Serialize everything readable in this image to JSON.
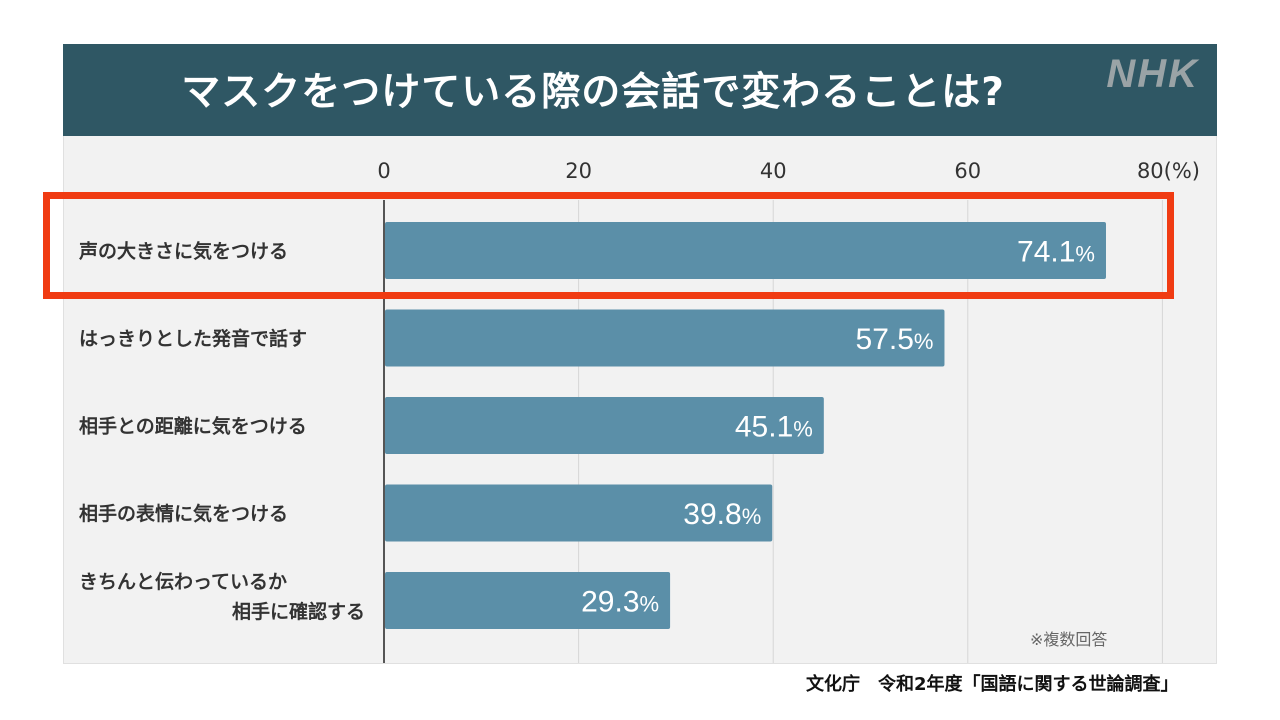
{
  "header": {
    "title": "マスクをつけている際の会話で変わることは?",
    "logo": "NHK"
  },
  "chart_data": {
    "type": "bar",
    "orientation": "horizontal",
    "title": "マスクをつけている際の会話で変わることは?",
    "categories": [
      "声の大きさに気をつける",
      "はっきりとした発音で話す",
      "相手との距離に気をつける",
      "相手の表情に気をつける",
      "きちんと伝わっているか\n相手に確認する"
    ],
    "values": [
      74.1,
      57.5,
      45.1,
      39.8,
      29.3
    ],
    "value_unit": "%",
    "xlim": [
      0,
      80
    ],
    "x_ticks": [
      "0",
      "20",
      "40",
      "60",
      "80(%)"
    ],
    "grid": true,
    "bar_color": "#5b8fa8",
    "highlighted_category_index": 0,
    "highlight_color": "#f03b12"
  },
  "note": "※複数回答",
  "source": "文化庁　令和2年度「国語に関する世論調査」"
}
